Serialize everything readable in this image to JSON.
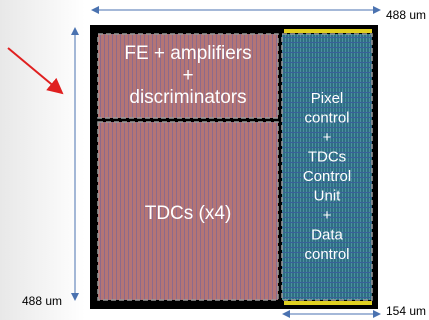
{
  "dimensions": {
    "top": "488 um",
    "left": "488 um",
    "bottom": "154 um"
  },
  "blocks": [
    {
      "lines": [
        "FE + amplifiers",
        "+",
        "discriminators"
      ]
    },
    {
      "lines": [
        "TDCs (x4)"
      ]
    },
    {
      "lines": [
        "Pixel",
        "control",
        "+",
        "TDCs",
        "Control",
        "Unit",
        "+",
        "Data",
        "control"
      ]
    }
  ]
}
